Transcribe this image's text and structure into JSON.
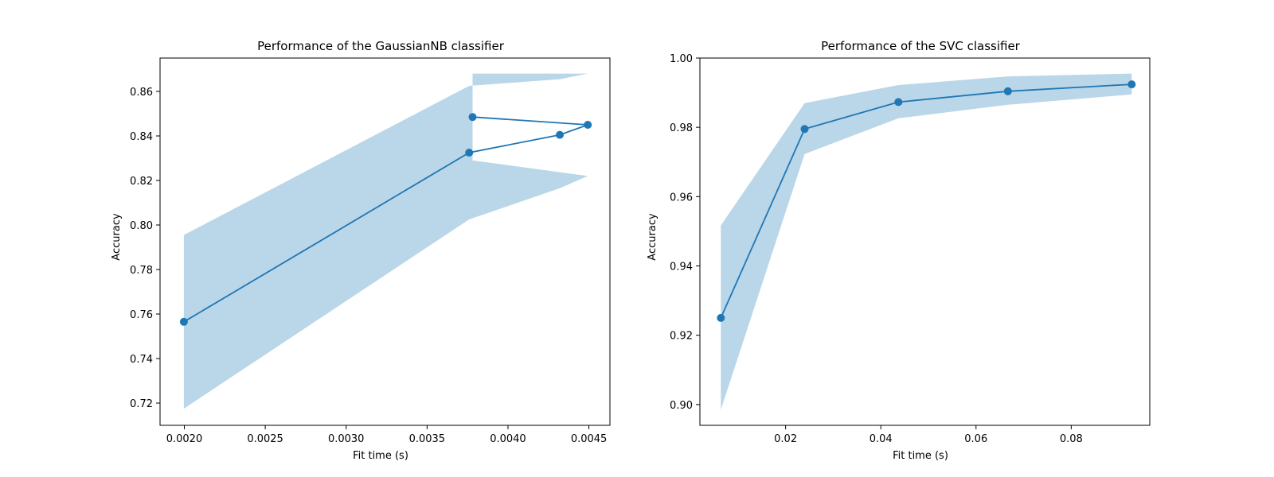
{
  "chart_data": [
    {
      "type": "line",
      "title": "Performance of the GaussianNB classifier",
      "xlabel": "Fit time (s)",
      "ylabel": "Accuracy",
      "xlim": [
        0.00185,
        0.00463
      ],
      "ylim": [
        0.71,
        0.875
      ],
      "xticks": [
        0.002,
        0.0025,
        0.003,
        0.0035,
        0.004,
        0.0045
      ],
      "xtick_labels": [
        "0.0020",
        "0.0025",
        "0.0030",
        "0.0035",
        "0.0040",
        "0.0045"
      ],
      "yticks": [
        0.72,
        0.74,
        0.76,
        0.78,
        0.8,
        0.82,
        0.84,
        0.86
      ],
      "ytick_labels": [
        "0.72",
        "0.74",
        "0.76",
        "0.78",
        "0.80",
        "0.82",
        "0.84",
        "0.86"
      ],
      "series": [
        {
          "x": [
            0.001997,
            0.00376,
            0.00432,
            0.004493,
            0.003781
          ],
          "y": [
            0.7565,
            0.8325,
            0.8405,
            0.845,
            0.8485
          ]
        }
      ],
      "band": {
        "x": [
          0.001997,
          0.00376,
          0.00432,
          0.004493,
          0.003781
        ],
        "lower": [
          0.7175,
          0.8025,
          0.8165,
          0.822,
          0.829
        ],
        "upper": [
          0.7955,
          0.8625,
          0.8655,
          0.868,
          0.868
        ]
      },
      "color": "#1f77b4",
      "band_color": "#bad6e9",
      "grid": false
    },
    {
      "type": "line",
      "title": "Performance of the SVC classifier",
      "xlabel": "Fit time (s)",
      "ylabel": "Accuracy",
      "xlim": [
        0.002,
        0.0965
      ],
      "ylim": [
        0.894,
        1.0
      ],
      "xticks": [
        0.02,
        0.04,
        0.06,
        0.08
      ],
      "xtick_labels": [
        "0.02",
        "0.04",
        "0.06",
        "0.08"
      ],
      "yticks": [
        0.9,
        0.92,
        0.94,
        0.96,
        0.98,
        1.0
      ],
      "ytick_labels": [
        "0.90",
        "0.92",
        "0.94",
        "0.96",
        "0.98",
        "1.00"
      ],
      "series": [
        {
          "x": [
            0.0064,
            0.024,
            0.0437,
            0.0667,
            0.0927
          ],
          "y": [
            0.925,
            0.9795,
            0.9873,
            0.9904,
            0.9924
          ]
        }
      ],
      "band": {
        "x": [
          0.0064,
          0.024,
          0.0437,
          0.0667,
          0.0927
        ],
        "lower": [
          0.8985,
          0.9723,
          0.9826,
          0.9865,
          0.9895
        ],
        "upper": [
          0.9517,
          0.987,
          0.9922,
          0.9947,
          0.9955
        ]
      },
      "color": "#1f77b4",
      "band_color": "#bad6e9",
      "grid": false
    }
  ]
}
